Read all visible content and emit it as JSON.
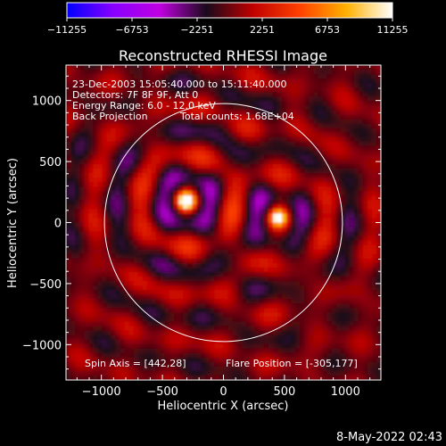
{
  "chart_data": {
    "type": "heatmap",
    "title": "Reconstructed RHESSI Image",
    "xlabel": "Heliocentric X (arcsec)",
    "ylabel": "Heliocentric Y (arcsec)",
    "xlim": [
      -1290,
      1290
    ],
    "ylim": [
      -1290,
      1290
    ],
    "x_ticks": [
      {
        "value": -1000,
        "label": "−1000"
      },
      {
        "value": -500,
        "label": "−500"
      },
      {
        "value": 0,
        "label": "0"
      },
      {
        "value": 500,
        "label": "500"
      },
      {
        "value": 1000,
        "label": "1000"
      }
    ],
    "y_ticks": [
      {
        "value": 1000,
        "label": "1000"
      },
      {
        "value": 500,
        "label": "500"
      },
      {
        "value": 0,
        "label": "0"
      },
      {
        "value": -500,
        "label": "−500"
      },
      {
        "value": -1000,
        "label": "−1000"
      }
    ],
    "colorbar": {
      "range": [
        -11255,
        11255
      ],
      "ticks": [
        {
          "value": -11255,
          "label": "−11255"
        },
        {
          "value": -6753,
          "label": "−6753"
        },
        {
          "value": -2251,
          "label": "−2251"
        },
        {
          "value": 2251,
          "label": "2251"
        },
        {
          "value": 6753,
          "label": "6753"
        },
        {
          "value": 11255,
          "label": "11255"
        }
      ],
      "colors": [
        "#0000ff",
        "#8800ff",
        "#c000e0",
        "#1a0a1a",
        "#c00000",
        "#ff4000",
        "#ffb000",
        "#ffffff"
      ]
    },
    "solar_disk_radius_arcsec": 975,
    "sources": [
      {
        "x": -305,
        "y": 177,
        "peak": 11255
      },
      {
        "x": 450,
        "y": 40,
        "peak": 9000
      }
    ],
    "annotations": {
      "time_range": "23-Dec-2003 15:05:40.000 to 15:11:40.000",
      "detectors": "Detectors: 7F 8F 9F, Att 0",
      "energy_range": "Energy Range: 6.0 - 12.0 keV",
      "method": "Back Projection",
      "total_counts": "Total counts: 1.68E+04",
      "spin_axis": "Spin Axis = [442,28]",
      "flare_position": "Flare Position = [-305,177]"
    },
    "grid": false
  },
  "footer": {
    "date": "8-May-2022 02:43"
  }
}
